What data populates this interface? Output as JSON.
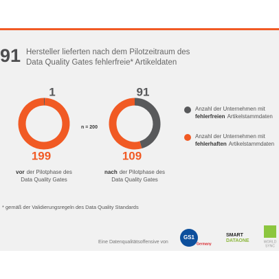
{
  "chart_data": {
    "type": "donut",
    "title_number": "91",
    "title_lines": [
      "Hersteller lieferten nach dem Pilotzeitraum des",
      "Data Quality Gates fehlerfreie* Artikeldaten"
    ],
    "n_label": "n = 200",
    "groups": [
      {
        "bold": "vor",
        "line1": "der Pilotphase des",
        "line2": "Data Quality Gates"
      },
      {
        "bold": "nach",
        "line1": "der Pilotphase des",
        "line2": "Data Quality Gates"
      }
    ],
    "series": [
      {
        "name_prefix": "Anzahl der Unternehmen mit",
        "name_bold": "fehlerfreien",
        "name_suffix": "Artikelstammdaten",
        "color": "#58595b",
        "values": [
          1,
          91
        ]
      },
      {
        "name_prefix": "Anzahl der Unternehmen mit",
        "name_bold": "fehlerhaften",
        "name_suffix": "Artikelstammdaten",
        "color": "#f15a24",
        "values": [
          199,
          109
        ]
      }
    ],
    "footnote": "* gemäß der Validierungsregeln des Data Quality Standards",
    "footer": {
      "text": "Eine Datenqualitätsoffensive von",
      "gs1": "GS1",
      "gs1_sub": "Germany",
      "sdo_top": "SMART",
      "sdo_bottom": "DATAONE",
      "ws_top": "WORLD",
      "ws_bottom": "SYNC"
    }
  }
}
